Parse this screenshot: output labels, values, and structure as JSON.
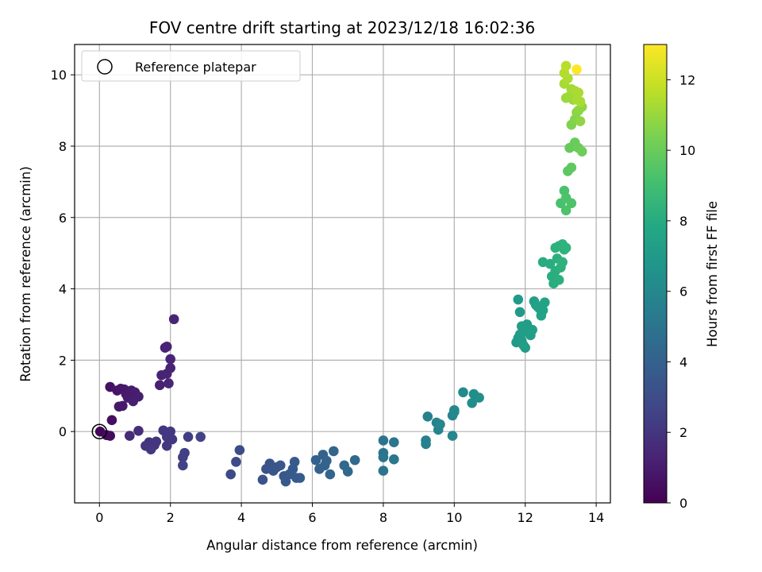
{
  "chart_data": {
    "type": "scatter",
    "title": "FOV centre drift starting at 2023/12/18 16:02:36",
    "xlabel": "Angular distance from reference (arcmin)",
    "ylabel": "Rotation from reference (arcmin)",
    "xlim": [
      -0.7,
      14.4
    ],
    "ylim": [
      -2.0,
      10.85
    ],
    "xticks": [
      0,
      2,
      4,
      6,
      8,
      10,
      12,
      14
    ],
    "yticks": [
      0,
      2,
      4,
      6,
      8,
      10
    ],
    "grid": true,
    "colormap": "viridis",
    "colorbar": {
      "label": "Hours from first FF file",
      "range": [
        0,
        13
      ],
      "ticks": [
        0,
        2,
        4,
        6,
        8,
        10,
        12
      ]
    },
    "legend": {
      "placement": "top-left",
      "entries": [
        "Reference platepar"
      ]
    },
    "reference_point": {
      "x": 0,
      "y": 0
    },
    "points": [
      [
        0.02,
        0.0,
        0.1
      ],
      [
        0.2,
        -0.1,
        0.3
      ],
      [
        0.3,
        -0.12,
        0.4
      ],
      [
        0.35,
        0.32,
        0.5
      ],
      [
        0.3,
        1.25,
        0.6
      ],
      [
        0.5,
        1.15,
        0.7
      ],
      [
        0.6,
        1.2,
        0.8
      ],
      [
        0.7,
        1.18,
        0.85
      ],
      [
        0.75,
        1.05,
        0.9
      ],
      [
        0.9,
        1.15,
        1.0
      ],
      [
        1.0,
        1.1,
        1.05
      ],
      [
        1.1,
        0.98,
        1.1
      ],
      [
        0.8,
        0.95,
        1.0
      ],
      [
        0.95,
        0.85,
        1.1
      ],
      [
        0.65,
        0.72,
        0.95
      ],
      [
        0.55,
        0.7,
        0.9
      ],
      [
        1.7,
        1.3,
        1.2
      ],
      [
        1.75,
        1.58,
        1.25
      ],
      [
        1.9,
        1.62,
        1.3
      ],
      [
        2.0,
        1.78,
        1.3
      ],
      [
        1.95,
        1.35,
        1.35
      ],
      [
        1.85,
        2.35,
        1.25
      ],
      [
        1.9,
        2.38,
        1.3
      ],
      [
        2.0,
        2.03,
        1.35
      ],
      [
        2.1,
        3.15,
        1.4
      ],
      [
        0.85,
        -0.12,
        1.6
      ],
      [
        1.1,
        0.02,
        1.7
      ],
      [
        1.4,
        -0.3,
        1.9
      ],
      [
        1.55,
        -0.38,
        2.0
      ],
      [
        1.45,
        -0.5,
        2.1
      ],
      [
        1.3,
        -0.4,
        1.95
      ],
      [
        1.6,
        -0.28,
        2.0
      ],
      [
        1.8,
        0.03,
        2.05
      ],
      [
        1.9,
        -0.4,
        2.1
      ],
      [
        2.0,
        0.0,
        2.1
      ],
      [
        2.05,
        -0.22,
        2.15
      ],
      [
        1.9,
        -0.15,
        2.1
      ],
      [
        2.35,
        -0.72,
        2.4
      ],
      [
        2.4,
        -0.6,
        2.45
      ],
      [
        2.35,
        -0.95,
        2.5
      ],
      [
        2.5,
        -0.15,
        2.35
      ],
      [
        2.85,
        -0.15,
        2.5
      ],
      [
        3.7,
        -1.2,
        2.9
      ],
      [
        3.85,
        -0.85,
        2.95
      ],
      [
        3.95,
        -0.52,
        3.0
      ],
      [
        4.6,
        -1.35,
        3.3
      ],
      [
        4.7,
        -1.05,
        3.3
      ],
      [
        4.8,
        -0.9,
        3.35
      ],
      [
        4.9,
        -1.1,
        3.4
      ],
      [
        5.0,
        -1.0,
        3.45
      ],
      [
        5.1,
        -0.95,
        3.5
      ],
      [
        5.2,
        -1.25,
        3.55
      ],
      [
        5.25,
        -1.4,
        3.6
      ],
      [
        5.35,
        -1.2,
        3.6
      ],
      [
        5.45,
        -1.05,
        3.65
      ],
      [
        5.5,
        -0.85,
        3.7
      ],
      [
        5.55,
        -1.3,
        3.7
      ],
      [
        5.65,
        -1.3,
        3.75
      ],
      [
        6.1,
        -0.8,
        4.0
      ],
      [
        6.2,
        -1.05,
        4.05
      ],
      [
        6.3,
        -0.65,
        4.1
      ],
      [
        6.35,
        -0.95,
        4.1
      ],
      [
        6.4,
        -0.82,
        4.15
      ],
      [
        6.5,
        -1.2,
        4.2
      ],
      [
        6.6,
        -0.55,
        4.25
      ],
      [
        6.9,
        -0.95,
        4.35
      ],
      [
        7.0,
        -1.12,
        4.4
      ],
      [
        7.2,
        -0.8,
        4.5
      ],
      [
        8.0,
        -0.25,
        5.0
      ],
      [
        8.0,
        -0.6,
        5.0
      ],
      [
        8.0,
        -0.72,
        5.05
      ],
      [
        8.0,
        -1.1,
        5.0
      ],
      [
        8.3,
        -0.3,
        5.1
      ],
      [
        8.3,
        -0.78,
        5.15
      ],
      [
        9.2,
        -0.25,
        5.6
      ],
      [
        9.2,
        -0.35,
        5.6
      ],
      [
        9.25,
        0.42,
        5.65
      ],
      [
        9.5,
        0.25,
        5.75
      ],
      [
        9.55,
        0.05,
        5.8
      ],
      [
        9.6,
        0.2,
        5.85
      ],
      [
        9.95,
        -0.12,
        5.95
      ],
      [
        9.95,
        0.45,
        6.0
      ],
      [
        10.0,
        0.6,
        6.05
      ],
      [
        10.0,
        0.55,
        6.05
      ],
      [
        10.25,
        1.1,
        6.2
      ],
      [
        10.5,
        0.8,
        6.3
      ],
      [
        10.55,
        1.05,
        6.35
      ],
      [
        10.7,
        0.95,
        6.4
      ],
      [
        11.75,
        2.5,
        7.0
      ],
      [
        11.8,
        2.62,
        7.05
      ],
      [
        11.85,
        2.72,
        7.1
      ],
      [
        11.9,
        2.55,
        7.1
      ],
      [
        11.95,
        2.42,
        7.15
      ],
      [
        12.0,
        2.35,
        7.15
      ],
      [
        12.0,
        2.8,
        7.2
      ],
      [
        12.05,
        3.0,
        7.2
      ],
      [
        11.9,
        2.95,
        7.15
      ],
      [
        12.15,
        2.7,
        7.25
      ],
      [
        12.2,
        2.85,
        7.3
      ],
      [
        12.25,
        3.65,
        7.35
      ],
      [
        12.3,
        3.55,
        7.35
      ],
      [
        12.35,
        3.5,
        7.4
      ],
      [
        12.4,
        3.45,
        7.4
      ],
      [
        12.45,
        3.25,
        7.45
      ],
      [
        12.5,
        3.4,
        7.45
      ],
      [
        12.55,
        3.62,
        7.5
      ],
      [
        11.8,
        3.7,
        7.0
      ],
      [
        11.85,
        3.35,
        7.05
      ],
      [
        12.5,
        4.75,
        8.0
      ],
      [
        12.7,
        4.7,
        8.05
      ],
      [
        12.75,
        4.35,
        8.1
      ],
      [
        12.8,
        4.15,
        8.1
      ],
      [
        12.85,
        4.5,
        8.15
      ],
      [
        12.9,
        4.85,
        8.2
      ],
      [
        12.95,
        4.25,
        8.2
      ],
      [
        13.0,
        4.6,
        8.25
      ],
      [
        13.05,
        4.75,
        8.3
      ],
      [
        13.1,
        5.1,
        8.3
      ],
      [
        13.15,
        5.15,
        8.35
      ],
      [
        12.85,
        5.15,
        8.3
      ],
      [
        12.95,
        5.2,
        8.3
      ],
      [
        13.05,
        5.25,
        8.35
      ],
      [
        13.0,
        6.4,
        9.2
      ],
      [
        13.1,
        6.75,
        9.25
      ],
      [
        13.15,
        6.55,
        9.3
      ],
      [
        13.15,
        6.2,
        9.3
      ],
      [
        13.3,
        6.4,
        9.35
      ],
      [
        13.2,
        7.3,
        9.7
      ],
      [
        13.3,
        7.4,
        9.75
      ],
      [
        13.25,
        7.95,
        9.9
      ],
      [
        13.35,
        8.0,
        9.95
      ],
      [
        13.4,
        8.1,
        10.0
      ],
      [
        13.5,
        7.95,
        10.05
      ],
      [
        13.6,
        7.85,
        10.1
      ],
      [
        13.3,
        8.6,
        10.5
      ],
      [
        13.4,
        8.75,
        10.6
      ],
      [
        13.45,
        8.95,
        10.7
      ],
      [
        13.5,
        9.0,
        10.75
      ],
      [
        13.55,
        8.7,
        10.8
      ],
      [
        13.6,
        9.1,
        10.85
      ],
      [
        13.35,
        9.3,
        11.0
      ],
      [
        13.15,
        9.35,
        11.05
      ],
      [
        13.25,
        9.4,
        11.1
      ],
      [
        13.3,
        9.6,
        11.2
      ],
      [
        13.4,
        9.55,
        11.25
      ],
      [
        13.1,
        9.75,
        11.3
      ],
      [
        13.2,
        9.9,
        11.4
      ],
      [
        13.1,
        10.05,
        11.5
      ],
      [
        13.15,
        10.25,
        11.6
      ],
      [
        13.45,
        9.3,
        11.3
      ],
      [
        13.5,
        9.5,
        11.35
      ],
      [
        13.55,
        9.25,
        11.3
      ],
      [
        13.45,
        10.15,
        13.0
      ]
    ]
  }
}
